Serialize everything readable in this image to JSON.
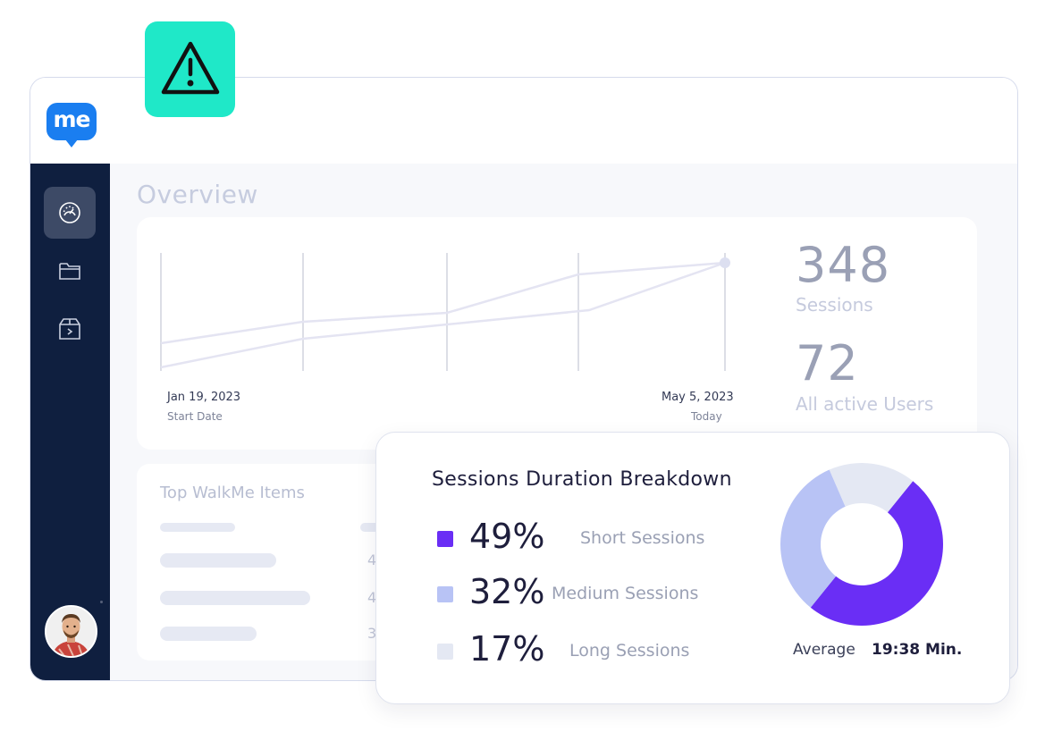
{
  "app": {
    "logo_text": "me"
  },
  "sidebar": {
    "items": [
      {
        "icon": "gauge-icon",
        "active": true
      },
      {
        "icon": "folder-icon",
        "active": false
      },
      {
        "icon": "box-icon",
        "active": false
      }
    ]
  },
  "overview": {
    "title": "Overview",
    "start_date": "Jan 19, 2023",
    "start_label": "Start Date",
    "end_date": "May 5, 2023",
    "end_label": "Today",
    "sessions_value": "348",
    "sessions_label": "Sessions",
    "users_value": "72",
    "users_label": "All active Users"
  },
  "top_items": {
    "title": "Top WalkMe Items",
    "rows": [
      {
        "num": ""
      },
      {
        "num": "4"
      },
      {
        "num": "4"
      },
      {
        "num": "3"
      }
    ]
  },
  "breakdown": {
    "title": "Sessions Duration Breakdown",
    "rows": [
      {
        "pct": "49%",
        "label": "Short Sessions",
        "color": "#6a2ef5"
      },
      {
        "pct": "32%",
        "label": "Medium Sessions",
        "color": "#b8c3f5"
      },
      {
        "pct": "17%",
        "label": "Long Sessions",
        "color": "#e4e8f3"
      }
    ],
    "average_label": "Average",
    "average_value": "19:38 Min."
  },
  "chart_data": {
    "type": "pie",
    "title": "Sessions Duration Breakdown",
    "categories": [
      "Short Sessions",
      "Medium Sessions",
      "Long Sessions"
    ],
    "values": [
      49,
      32,
      17
    ],
    "colors": [
      "#6a2ef5",
      "#b8c3f5",
      "#e4e8f3"
    ]
  },
  "colors": {
    "sidebar": "#0f1f3f",
    "accent_teal": "#1fe8c8",
    "brand_blue": "#1a7ef0"
  }
}
